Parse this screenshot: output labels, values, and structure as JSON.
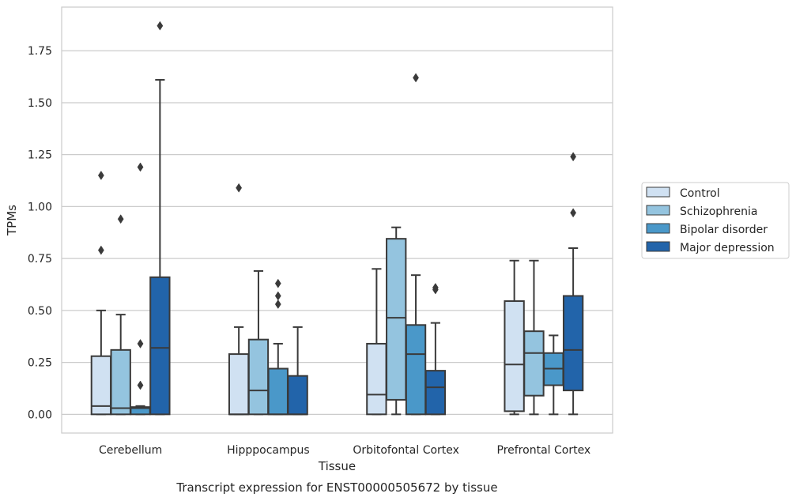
{
  "chart_data": {
    "type": "box",
    "title": "",
    "xlabel": "Tissue",
    "ylabel": "TPMs",
    "caption": "Transcript expression for ENST00000505672 by tissue",
    "ylim": [
      -0.09,
      1.96
    ],
    "yticks": [
      0.0,
      0.25,
      0.5,
      0.75,
      1.0,
      1.25,
      1.5,
      1.75
    ],
    "ytick_labels": [
      "0.00",
      "0.25",
      "0.50",
      "0.75",
      "1.00",
      "1.25",
      "1.50",
      "1.75"
    ],
    "grid": "horizontal",
    "legend_position": "right",
    "categories": [
      "Cerebellum",
      "Hipppocampus",
      "Orbitofontal Cortex",
      "Prefrontal Cortex"
    ],
    "series": [
      {
        "name": "Control",
        "color": "#d0e1f2",
        "boxes": [
          {
            "whislo": 0.0,
            "q1": 0.0,
            "med": 0.04,
            "q3": 0.28,
            "whishi": 0.5,
            "fliers": [
              0.79,
              1.15
            ]
          },
          {
            "whislo": 0.0,
            "q1": 0.0,
            "med": 0.0,
            "q3": 0.29,
            "whishi": 0.42,
            "fliers": [
              1.09
            ]
          },
          {
            "whislo": 0.0,
            "q1": 0.0,
            "med": 0.095,
            "q3": 0.34,
            "whishi": 0.7,
            "fliers": []
          },
          {
            "whislo": 0.0,
            "q1": 0.015,
            "med": 0.24,
            "q3": 0.545,
            "whishi": 0.74,
            "fliers": []
          }
        ]
      },
      {
        "name": "Schizophrenia",
        "color": "#94c4df",
        "boxes": [
          {
            "whislo": 0.0,
            "q1": 0.0,
            "med": 0.03,
            "q3": 0.31,
            "whishi": 0.48,
            "fliers": [
              0.94
            ]
          },
          {
            "whislo": 0.0,
            "q1": 0.0,
            "med": 0.115,
            "q3": 0.36,
            "whishi": 0.69,
            "fliers": []
          },
          {
            "whislo": 0.0,
            "q1": 0.07,
            "med": 0.465,
            "q3": 0.845,
            "whishi": 0.9,
            "fliers": []
          },
          {
            "whislo": 0.0,
            "q1": 0.09,
            "med": 0.295,
            "q3": 0.4,
            "whishi": 0.74,
            "fliers": []
          }
        ]
      },
      {
        "name": "Bipolar disorder",
        "color": "#4a98c9",
        "boxes": [
          {
            "whislo": 0.0,
            "q1": 0.0,
            "med": 0.03,
            "q3": 0.035,
            "whishi": 0.04,
            "fliers": [
              0.14,
              0.34,
              1.19
            ]
          },
          {
            "whislo": 0.0,
            "q1": 0.0,
            "med": 0.0,
            "q3": 0.22,
            "whishi": 0.34,
            "fliers": [
              0.53,
              0.57,
              0.63
            ]
          },
          {
            "whislo": 0.0,
            "q1": 0.0,
            "med": 0.29,
            "q3": 0.43,
            "whishi": 0.67,
            "fliers": [
              1.62
            ]
          },
          {
            "whislo": 0.0,
            "q1": 0.14,
            "med": 0.22,
            "q3": 0.295,
            "whishi": 0.38,
            "fliers": []
          }
        ]
      },
      {
        "name": "Major depression",
        "color": "#2264aa",
        "boxes": [
          {
            "whislo": 0.0,
            "q1": 0.0,
            "med": 0.32,
            "q3": 0.66,
            "whishi": 1.61,
            "fliers": [
              1.87
            ]
          },
          {
            "whislo": 0.0,
            "q1": 0.0,
            "med": 0.0,
            "q3": 0.185,
            "whishi": 0.42,
            "fliers": []
          },
          {
            "whislo": 0.0,
            "q1": 0.0,
            "med": 0.13,
            "q3": 0.21,
            "whishi": 0.44,
            "fliers": [
              0.6,
              0.61
            ]
          },
          {
            "whislo": 0.0,
            "q1": 0.115,
            "med": 0.31,
            "q3": 0.57,
            "whishi": 0.8,
            "fliers": [
              0.97,
              1.24
            ]
          }
        ]
      }
    ]
  }
}
